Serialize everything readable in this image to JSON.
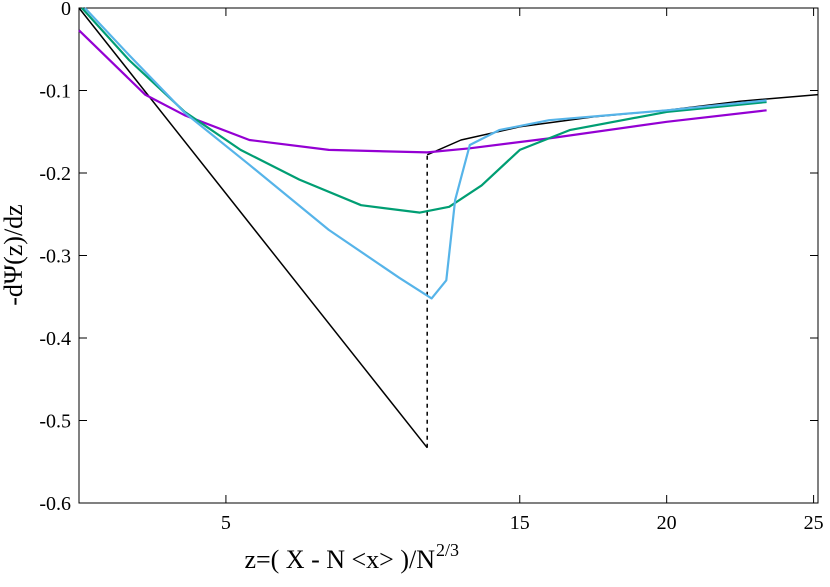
{
  "chart_data": {
    "type": "line",
    "ylabel": "-dΨ(z)/dz",
    "xlabel": "z=( X - N <x> )/N",
    "xlabel_sup": "2/3",
    "xlim": [
      0,
      25.15
    ],
    "ylim": [
      -0.6,
      0
    ],
    "xticks": [
      5,
      15,
      20,
      25
    ],
    "yticks": [
      0,
      -0.1,
      -0.2,
      -0.3,
      -0.4,
      -0.5,
      -0.6
    ],
    "grid": false,
    "series": [
      {
        "color": "#000000",
        "dash": false,
        "x": [
          0,
          11.85
        ],
        "values": [
          0,
          -0.533
        ]
      },
      {
        "color": "#000000",
        "dash": true,
        "x": [
          11.85,
          11.85
        ],
        "values": [
          -0.533,
          -0.178
        ]
      },
      {
        "color": "#000000",
        "dash": false,
        "x": [
          11.85,
          13,
          15,
          17.5,
          20,
          22.5,
          25.15
        ],
        "values": [
          -0.178,
          -0.16,
          -0.144,
          -0.132,
          -0.124,
          -0.113,
          -0.105
        ]
      },
      {
        "color": "#9400d3",
        "dash": false,
        "x": [
          0,
          2.25,
          3.6,
          5.8,
          8.5,
          11.85,
          13.3,
          16,
          20,
          23.4
        ],
        "values": [
          -0.027,
          -0.105,
          -0.13,
          -0.16,
          -0.172,
          -0.175,
          -0.17,
          -0.158,
          -0.138,
          -0.124
        ]
      },
      {
        "color": "#009e73",
        "dash": false,
        "x": [
          0.1,
          1.7,
          3.6,
          5.5,
          7.5,
          9.6,
          11.6,
          12.6,
          13.7,
          15,
          16.7,
          20,
          23.4
        ],
        "values": [
          0,
          -0.063,
          -0.126,
          -0.172,
          -0.208,
          -0.239,
          -0.248,
          -0.241,
          -0.215,
          -0.172,
          -0.148,
          -0.126,
          -0.114
        ]
      },
      {
        "color": "#56b4e9",
        "dash": false,
        "x": [
          0.2,
          1.7,
          3.6,
          5.8,
          8.5,
          10.9,
          12,
          12.5,
          12.8,
          13.3,
          14.3,
          16,
          20,
          23.4
        ],
        "values": [
          0,
          -0.057,
          -0.127,
          -0.19,
          -0.269,
          -0.327,
          -0.352,
          -0.33,
          -0.233,
          -0.166,
          -0.148,
          -0.136,
          -0.124,
          -0.112
        ]
      }
    ]
  }
}
